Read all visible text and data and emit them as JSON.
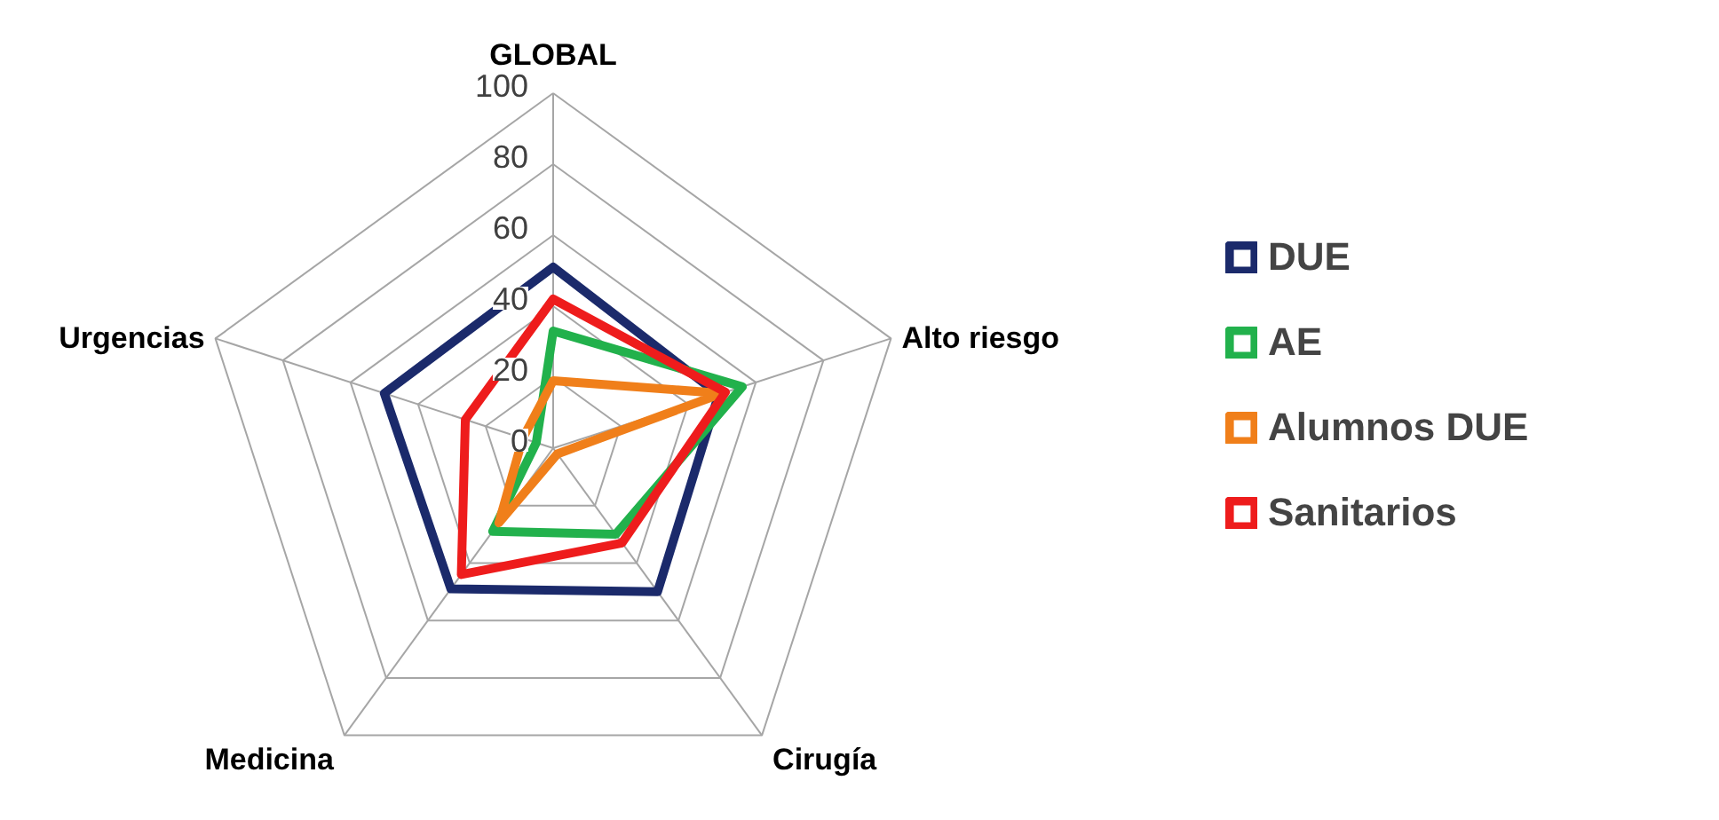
{
  "chart_data": {
    "type": "radar",
    "categories": [
      "GLOBAL",
      "Alto riesgo",
      "Cirugía",
      "Medicina",
      "Urgencias"
    ],
    "series": [
      {
        "name": "DUE",
        "color": "#1b2a6b",
        "values": [
          51,
          49,
          50,
          49,
          50
        ]
      },
      {
        "name": "AE",
        "color": "#22b14c",
        "values": [
          33,
          56,
          30,
          29,
          5
        ]
      },
      {
        "name": "Alumnos DUE",
        "color": "#f07f1a",
        "values": [
          19,
          50,
          2,
          26,
          9
        ]
      },
      {
        "name": "Sanitarios",
        "color": "#ee1c1c",
        "values": [
          42,
          51,
          33,
          44,
          26
        ]
      }
    ],
    "ylim": [
      0,
      100
    ],
    "yticks": [
      0,
      20,
      40,
      60,
      80,
      100
    ],
    "grid": true,
    "legend": "right"
  }
}
